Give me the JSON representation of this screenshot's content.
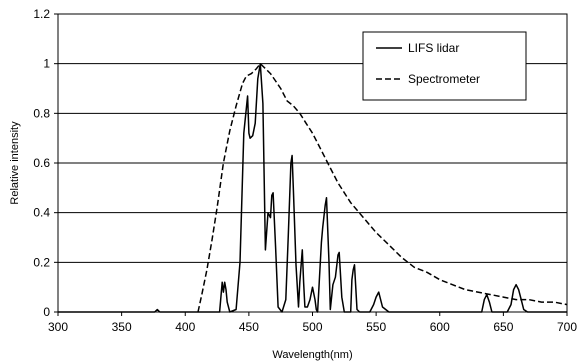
{
  "chart_data": {
    "type": "line",
    "xlabel": "Wavelength(nm)",
    "ylabel": "Relative intensity",
    "xlim": [
      300,
      700
    ],
    "ylim": [
      0,
      1.2
    ],
    "xticks": [
      "300",
      "350",
      "400",
      "450",
      "500",
      "550",
      "600",
      "650",
      "700"
    ],
    "yticks": [
      "0",
      "0.2",
      "0.4",
      "0.6",
      "0.8",
      "1",
      "1.2"
    ],
    "grid": "horizontal",
    "legend_position": "top-right",
    "series": [
      {
        "name": "LIFS lidar",
        "style": "solid",
        "color": "#000000",
        "x": [
          300,
          350,
          376,
          378,
          380,
          427,
          429,
          430,
          431,
          432,
          433,
          435,
          440,
          443,
          446,
          449,
          450,
          451,
          453,
          455,
          457,
          459,
          461,
          463,
          465,
          467,
          468,
          469,
          471,
          473,
          476,
          479,
          481,
          483,
          484,
          485,
          487,
          489,
          490,
          492,
          493,
          494,
          496,
          498,
          500,
          502,
          503,
          504,
          507,
          508,
          510,
          511,
          513,
          514,
          516,
          518,
          520,
          521,
          523,
          525,
          528,
          530,
          531,
          532,
          533,
          535,
          537,
          545,
          548,
          550,
          552,
          555,
          560,
          600,
          633,
          635,
          637,
          639,
          641,
          653,
          656,
          658,
          660,
          662,
          664,
          666,
          669,
          700
        ],
        "y": [
          0,
          0,
          0,
          0.01,
          0,
          0,
          0.12,
          0.08,
          0.12,
          0.09,
          0.04,
          0,
          0.01,
          0.2,
          0.72,
          0.87,
          0.72,
          0.7,
          0.71,
          0.76,
          0.94,
          1.0,
          0.84,
          0.25,
          0.4,
          0.38,
          0.47,
          0.48,
          0.26,
          0.02,
          0,
          0.05,
          0.31,
          0.6,
          0.63,
          0.49,
          0.19,
          0.02,
          0.12,
          0.25,
          0.12,
          0.02,
          0.02,
          0.05,
          0.1,
          0.05,
          0.01,
          0,
          0.28,
          0.34,
          0.43,
          0.46,
          0.2,
          0.01,
          0.11,
          0.14,
          0.23,
          0.24,
          0.06,
          0,
          0,
          0,
          0.13,
          0.17,
          0.19,
          0.01,
          0,
          0,
          0.03,
          0.06,
          0.08,
          0.02,
          0,
          0,
          0,
          0.05,
          0.07,
          0.04,
          0,
          0,
          0.03,
          0.09,
          0.11,
          0.09,
          0.05,
          0.01,
          0,
          0
        ]
      },
      {
        "name": "Spectrometer",
        "style": "dashed",
        "color": "#000000",
        "x": [
          410,
          413,
          417,
          421,
          425,
          430,
          435,
          440,
          445,
          448,
          452,
          456,
          459,
          463,
          467,
          471,
          475,
          480,
          485,
          490,
          495,
          500,
          505,
          510,
          515,
          520,
          530,
          540,
          550,
          560,
          570,
          580,
          590,
          600,
          610,
          620,
          630,
          640,
          650,
          660,
          670,
          680,
          690,
          700
        ],
        "y": [
          0,
          0.07,
          0.17,
          0.29,
          0.42,
          0.6,
          0.73,
          0.83,
          0.92,
          0.95,
          0.96,
          0.98,
          1.0,
          0.98,
          0.96,
          0.93,
          0.9,
          0.85,
          0.83,
          0.8,
          0.76,
          0.72,
          0.67,
          0.62,
          0.57,
          0.52,
          0.44,
          0.38,
          0.32,
          0.27,
          0.22,
          0.18,
          0.16,
          0.13,
          0.11,
          0.09,
          0.08,
          0.07,
          0.06,
          0.05,
          0.05,
          0.04,
          0.04,
          0.03
        ]
      }
    ]
  }
}
